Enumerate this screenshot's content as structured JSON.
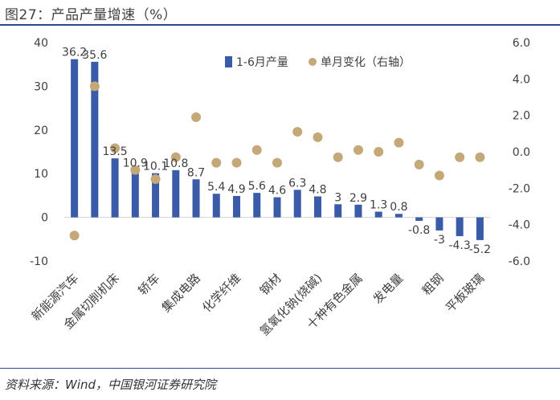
{
  "title": "图27：产品产量增速（%）",
  "source": "资料来源：Wind，中国银河证券研究院",
  "chart_data": {
    "type": "bar",
    "categories": [
      "新能源汽车",
      "",
      "金属切削机床",
      "",
      "轿车",
      "",
      "集成电路",
      "",
      "化学纤维",
      "",
      "钢材",
      "",
      "氢氧化钠(烧碱)",
      "",
      "十种有色金属",
      "",
      "发电量",
      "",
      "粗钢",
      "",
      "平板玻璃"
    ],
    "series": [
      {
        "name": "1-6月产量",
        "axis": "left",
        "kind": "bar",
        "color": "#3a5ba8",
        "values": [
          36.2,
          35.6,
          13.5,
          10.9,
          10.1,
          10.8,
          8.7,
          5.4,
          4.9,
          5.6,
          4.6,
          6.3,
          4.8,
          3,
          2.9,
          1.3,
          0.8,
          -0.8,
          -3,
          -4.3,
          -5.2
        ],
        "labels": [
          "36.2",
          "35.6",
          "13.5",
          "10.9",
          "10.1",
          "10.8",
          "8.7",
          "5.4",
          "4.9",
          "5.6",
          "4.6",
          "6.3",
          "4.8",
          "3",
          "2.9",
          "1.3",
          "0.8",
          "-0.8",
          "-3",
          "-4.3",
          "-5.2"
        ]
      },
      {
        "name": "单月变化（右轴）",
        "axis": "right",
        "kind": "scatter",
        "color": "#c4a878",
        "values": [
          -4.6,
          3.6,
          0.2,
          -1.0,
          -1.5,
          -0.3,
          1.9,
          -0.6,
          -0.6,
          0.1,
          -0.6,
          1.1,
          0.8,
          -0.3,
          0.1,
          0.0,
          0.5,
          -0.7,
          -1.3,
          -0.3,
          -0.3
        ]
      }
    ],
    "left_axis": {
      "min": -10,
      "max": 40,
      "ticks": [
        -10,
        0,
        10,
        20,
        30,
        40
      ],
      "tick_labels": [
        "-10",
        "0",
        "10",
        "20",
        "30",
        "40"
      ]
    },
    "right_axis": {
      "min": -6,
      "max": 6,
      "ticks": [
        -6,
        -4,
        -2,
        0,
        2,
        4,
        6
      ],
      "tick_labels": [
        "-6.0",
        "-4.0",
        "-2.0",
        "0.0",
        "2.0",
        "4.0",
        "6.0"
      ]
    },
    "legend": {
      "position": "top-right",
      "items": [
        "1-6月产量",
        "单月变化（右轴）"
      ]
    },
    "grid": false
  }
}
